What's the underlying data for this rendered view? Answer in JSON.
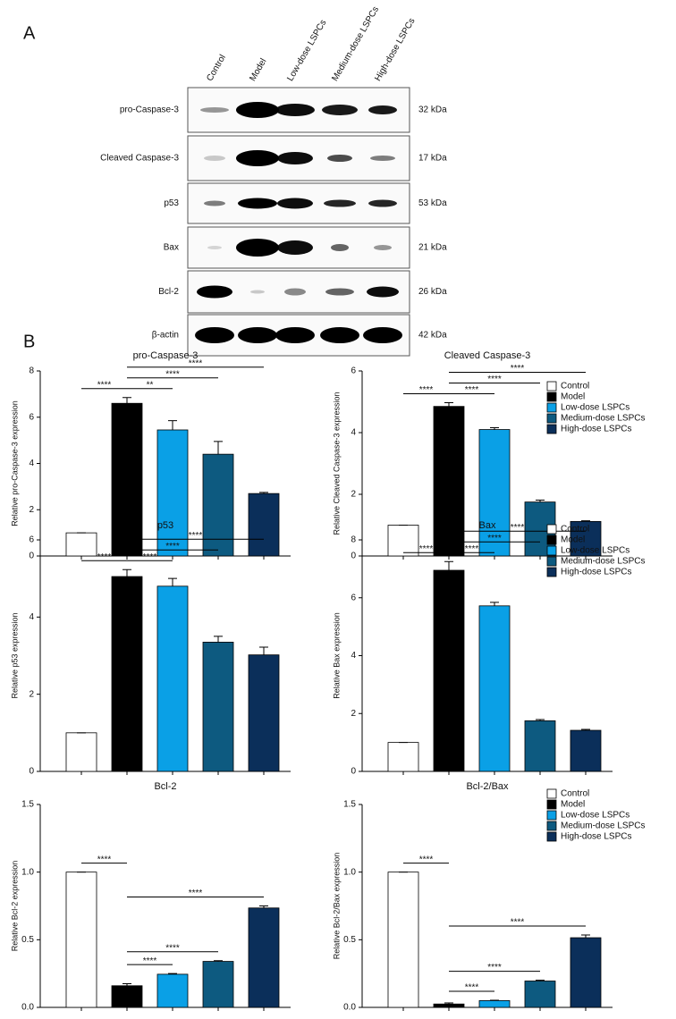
{
  "panel_a": {
    "label": "A",
    "lanes": [
      "Control",
      "Model",
      "Low-dose LSPCs",
      "Medium-dose LSPCs",
      "High-dose LSPCs"
    ],
    "rows": [
      {
        "protein": "pro-Caspase-3",
        "size": "32 kDa"
      },
      {
        "protein": "Cleaved Caspase-3",
        "size": "17 kDa"
      },
      {
        "protein": "p53",
        "size": "53 kDa"
      },
      {
        "protein": "Bax",
        "size": "21 kDa"
      },
      {
        "protein": "Bcl-2",
        "size": "26 kDa"
      },
      {
        "protein": "β-actin",
        "size": "42 kDa"
      }
    ]
  },
  "panel_b": {
    "label": "B"
  },
  "chart_data": [
    {
      "type": "bar",
      "title": "pro-Caspase-3",
      "ylabel": "Relative pro-Caspase-3 expression",
      "ylim": [
        0,
        8
      ],
      "yticks": [
        0,
        2,
        4,
        6,
        8
      ],
      "values": [
        1,
        6.6,
        5.45,
        4.4,
        2.7
      ],
      "errors": [
        0,
        0.25,
        0.4,
        0.55,
        0.05
      ],
      "colors": [
        "#ffffff",
        "#000000",
        "#0aa0e6",
        "#0d5a80",
        "#0b2f5a"
      ],
      "annotations": [
        {
          "between": [
            0,
            1
          ],
          "label": "****"
        },
        {
          "between": [
            1,
            2
          ],
          "label": "**"
        },
        {
          "between": [
            1,
            3
          ],
          "label": "****"
        },
        {
          "between": [
            1,
            4
          ],
          "label": "****"
        }
      ]
    },
    {
      "type": "bar",
      "title": "Cleaved Caspase-3",
      "ylabel": "Relative Cleaved Caspase-3 expression",
      "ylim": [
        0,
        6
      ],
      "yticks": [
        0,
        2,
        4,
        6
      ],
      "values": [
        1,
        4.85,
        4.1,
        1.75,
        1.12
      ],
      "errors": [
        0,
        0.12,
        0.06,
        0.06,
        0.02
      ],
      "colors": [
        "#ffffff",
        "#000000",
        "#0aa0e6",
        "#0d5a80",
        "#0b2f5a"
      ],
      "categories": [
        "Control",
        "Model",
        "Low-dose LSPCs",
        "Medium-dose LSPCs",
        "High-dose LSPCs"
      ],
      "legend": "right",
      "annotations": [
        {
          "between": [
            0,
            1
          ],
          "label": "****"
        },
        {
          "between": [
            1,
            2
          ],
          "label": "****"
        },
        {
          "between": [
            1,
            3
          ],
          "label": "****"
        },
        {
          "between": [
            1,
            4
          ],
          "label": "****"
        }
      ]
    },
    {
      "type": "bar",
      "title": "p53",
      "ylabel": "Relative p53 expression",
      "ylim": [
        0,
        6
      ],
      "yticks": [
        0,
        2,
        4,
        6
      ],
      "values": [
        1,
        5.05,
        4.8,
        3.35,
        3.02
      ],
      "errors": [
        0,
        0.18,
        0.2,
        0.15,
        0.2
      ],
      "colors": [
        "#ffffff",
        "#000000",
        "#0aa0e6",
        "#0d5a80",
        "#0b2f5a"
      ],
      "annotations": [
        {
          "between": [
            0,
            1
          ],
          "label": "****"
        },
        {
          "between": [
            1,
            2
          ],
          "label": "****"
        },
        {
          "between": [
            1,
            3
          ],
          "label": "****"
        },
        {
          "between": [
            1,
            4
          ],
          "label": "****"
        }
      ]
    },
    {
      "type": "bar",
      "title": "Bax",
      "ylabel": "Relative Bax expression",
      "ylim": [
        0,
        8
      ],
      "yticks": [
        0,
        2,
        4,
        6,
        8
      ],
      "values": [
        1,
        6.95,
        5.72,
        1.75,
        1.42
      ],
      "errors": [
        0,
        0.3,
        0.12,
        0.04,
        0.03
      ],
      "colors": [
        "#ffffff",
        "#000000",
        "#0aa0e6",
        "#0d5a80",
        "#0b2f5a"
      ],
      "categories": [
        "Control",
        "Model",
        "Low-dose LSPCs",
        "Medium-dose LSPCs",
        "High-dose LSPCs"
      ],
      "legend": "right",
      "annotations": [
        {
          "between": [
            0,
            1
          ],
          "label": "****"
        },
        {
          "between": [
            1,
            2
          ],
          "label": "****"
        },
        {
          "between": [
            1,
            3
          ],
          "label": "****"
        },
        {
          "between": [
            1,
            4
          ],
          "label": "****"
        }
      ]
    },
    {
      "type": "bar",
      "title": "Bcl-2",
      "ylabel": "Relative Bcl-2 expression",
      "ylim": [
        0,
        1.5
      ],
      "yticks": [
        {
          "value": 0,
          "label": "0.0"
        },
        {
          "value": 0.5,
          "label": "0.5"
        },
        {
          "value": 1,
          "label": "1.0"
        },
        {
          "value": 1.5,
          "label": "1.5"
        }
      ],
      "values": [
        1,
        0.16,
        0.245,
        0.34,
        0.735
      ],
      "errors": [
        0,
        0.015,
        0.005,
        0.005,
        0.015
      ],
      "colors": [
        "#ffffff",
        "#000000",
        "#0aa0e6",
        "#0d5a80",
        "#0b2f5a"
      ],
      "annotations": [
        {
          "between": [
            0,
            1
          ],
          "label": "****"
        },
        {
          "between": [
            1,
            2
          ],
          "label": "****"
        },
        {
          "between": [
            1,
            3
          ],
          "label": "****"
        },
        {
          "between": [
            1,
            4
          ],
          "label": "****"
        }
      ]
    },
    {
      "type": "bar",
      "title": "Bcl-2/Bax",
      "ylabel": "Relative Bcl-2/Bax expression",
      "ylim": [
        0,
        1.5
      ],
      "yticks": [
        {
          "value": 0,
          "label": "0.0"
        },
        {
          "value": 0.5,
          "label": "0.5"
        },
        {
          "value": 1,
          "label": "1.0"
        },
        {
          "value": 1.5,
          "label": "1.5"
        }
      ],
      "values": [
        1,
        0.025,
        0.05,
        0.195,
        0.515
      ],
      "errors": [
        0,
        0.008,
        0.003,
        0.006,
        0.02
      ],
      "colors": [
        "#ffffff",
        "#000000",
        "#0aa0e6",
        "#0d5a80",
        "#0b2f5a"
      ],
      "categories": [
        "Control",
        "Model",
        "Low-dose LSPCs",
        "Medium-dose LSPCs",
        "High-dose LSPCs"
      ],
      "legend": "right",
      "annotations": [
        {
          "between": [
            0,
            1
          ],
          "label": "****"
        },
        {
          "between": [
            1,
            2
          ],
          "label": "****"
        },
        {
          "between": [
            1,
            3
          ],
          "label": "****"
        },
        {
          "between": [
            1,
            4
          ],
          "label": "****"
        }
      ]
    }
  ]
}
